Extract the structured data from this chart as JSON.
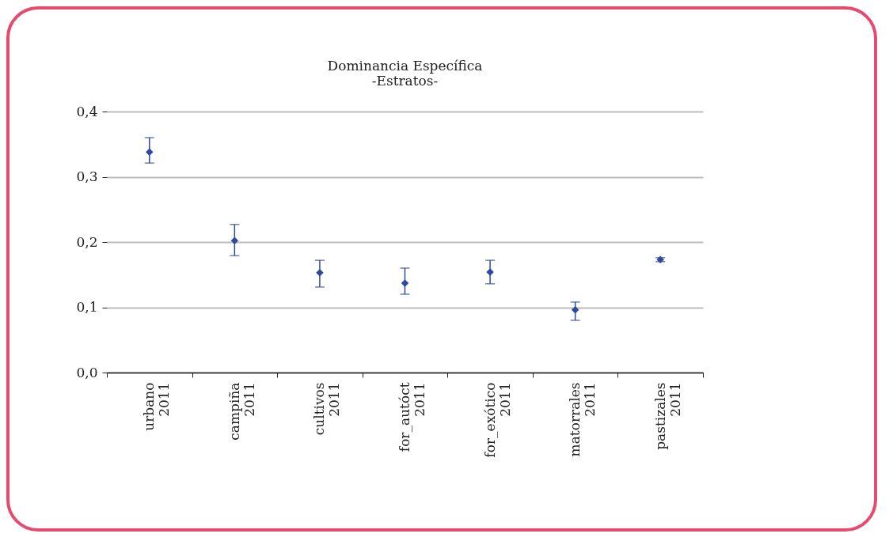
{
  "chart_data": {
    "type": "scatter",
    "title": "Dominancia Específica",
    "subtitle": "-Estratos-",
    "categories": [
      "urbano\n2011",
      "campiña\n2011",
      "cultivos\n2011",
      "for_autóct\n2011",
      "for_exótico\n2011",
      "matorrales\n2011",
      "pastizales\n2011"
    ],
    "values": [
      0.338,
      0.202,
      0.153,
      0.137,
      0.154,
      0.096,
      0.173
    ],
    "errors": [
      [
        0.321,
        0.36
      ],
      [
        0.179,
        0.227
      ],
      [
        0.131,
        0.172
      ],
      [
        0.12,
        0.16
      ],
      [
        0.136,
        0.172
      ],
      [
        0.08,
        0.108
      ],
      [
        0.17,
        0.176
      ]
    ],
    "color": "#2f4a9c",
    "marker": "diamond",
    "grid": "y",
    "ylim": [
      0,
      0.4
    ],
    "yticks": [
      {
        "value": 0,
        "label": "0,0"
      },
      {
        "value": 0.1,
        "label": "0,1"
      },
      {
        "value": 0.2,
        "label": "0,2"
      },
      {
        "value": 0.3,
        "label": "0,3"
      },
      {
        "value": 0.4,
        "label": "0,4"
      }
    ]
  }
}
